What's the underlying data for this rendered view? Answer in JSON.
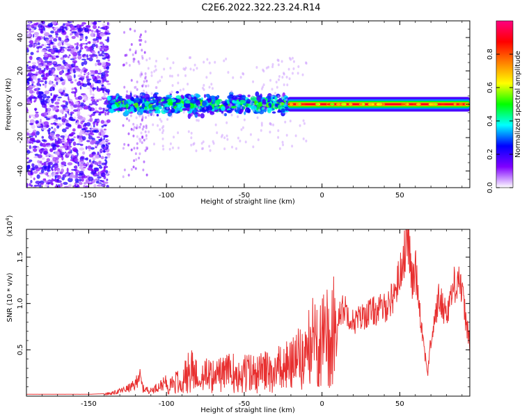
{
  "title": "C2E6.2022.322.23.24.R14",
  "chart_data": [
    {
      "type": "heatmap",
      "xlabel": "Height of straight line (km)",
      "ylabel": "Frequency (Hz)",
      "xlim": [
        -190,
        95
      ],
      "ylim": [
        -50,
        50
      ],
      "xticks": [
        -150,
        -100,
        -50,
        0,
        50
      ],
      "xtick_labels": [
        "-150",
        "-100",
        "-50",
        "0",
        "50"
      ],
      "yticks": [
        -40,
        -20,
        0,
        20,
        40
      ],
      "ytick_labels": [
        "-40",
        "-20",
        "0",
        "20",
        "40"
      ],
      "colorbar": {
        "label": "Normalized spectral amplitude",
        "range": [
          0,
          1
        ],
        "ticks": [
          0.0,
          0.2,
          0.4,
          0.6,
          0.8
        ],
        "tick_labels": [
          "0.0",
          "0.2",
          "0.4",
          "0.6",
          "0.8"
        ],
        "colors": [
          "#ffffff",
          "#8000ff",
          "#0000ff",
          "#00ffff",
          "#00ff00",
          "#ffff00",
          "#ff8000",
          "#ff0000",
          "#ff0080"
        ]
      },
      "regions": [
        {
          "x": [
            -190,
            -137
          ],
          "freq_half_width": 50,
          "amplitude": 0.1,
          "kind": "scattered noise"
        },
        {
          "x": [
            -137,
            -22
          ],
          "freq_half_width": 8,
          "amplitude": 0.3,
          "kind": "broadband returns"
        },
        {
          "x": [
            -22,
            95
          ],
          "freq_half_width": 2,
          "amplitude": 0.9,
          "kind": "narrow carrier"
        }
      ]
    },
    {
      "type": "line",
      "xlabel": "Height of straight line (km)",
      "ylabel": "SNR (10 * v/v)",
      "scale_label": "(x10",
      "scale_exp": "4",
      "scale_close": ")",
      "xlim": [
        -190,
        95
      ],
      "ylim": [
        0,
        1.8
      ],
      "xticks": [
        -150,
        -100,
        -50,
        0,
        50
      ],
      "xtick_labels": [
        "-150",
        "-100",
        "-50",
        "0",
        "50"
      ],
      "yticks": [
        0.5,
        1.0,
        1.5
      ],
      "ytick_labels": [
        "0.5",
        "1.0",
        "1.5"
      ],
      "series": [
        {
          "color": "#e83030",
          "x": [
            -190,
            -150,
            -135,
            -125,
            -120,
            -118,
            -115,
            -110,
            -100,
            -90,
            -85,
            -80,
            -70,
            -60,
            -50,
            -40,
            -30,
            -20,
            -10,
            -5,
            0,
            5,
            10,
            15,
            20,
            30,
            40,
            45,
            50,
            52,
            54,
            55,
            56,
            58,
            60,
            62,
            65,
            68,
            70,
            75,
            80,
            85,
            88,
            90,
            95
          ],
          "y": [
            0.02,
            0.02,
            0.03,
            0.08,
            0.12,
            0.25,
            0.08,
            0.06,
            0.15,
            0.2,
            0.35,
            0.3,
            0.25,
            0.3,
            0.3,
            0.3,
            0.35,
            0.4,
            0.55,
            0.75,
            0.7,
            0.8,
            0.9,
            0.95,
            0.8,
            0.9,
            0.95,
            1.05,
            1.3,
            1.5,
            1.62,
            1.78,
            1.6,
            1.2,
            1.4,
            1.1,
            0.6,
            0.25,
            0.6,
            1.05,
            0.9,
            1.2,
            1.3,
            1.1,
            0.55
          ]
        }
      ]
    }
  ]
}
